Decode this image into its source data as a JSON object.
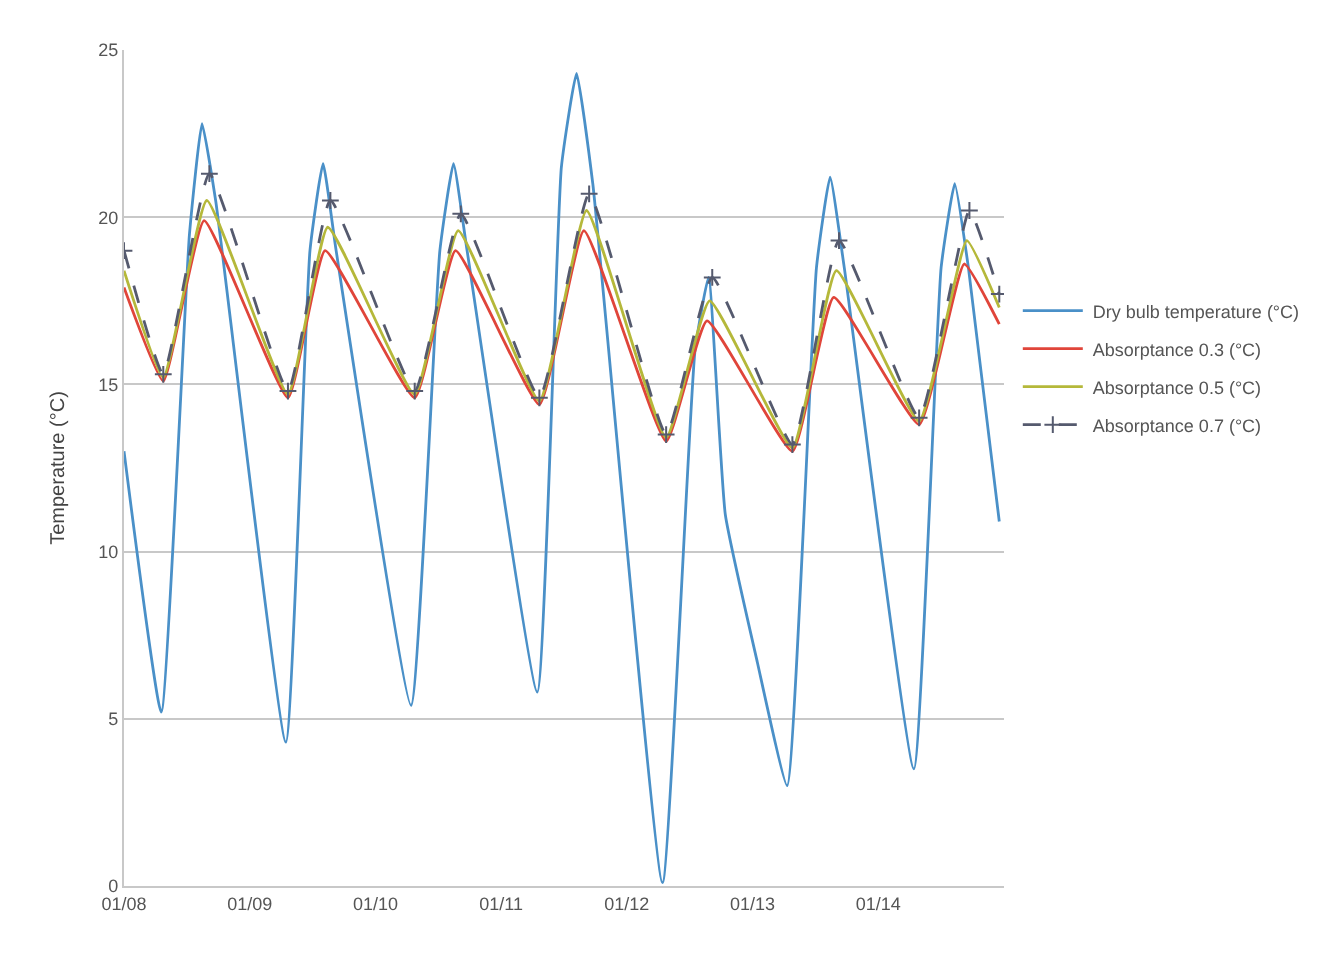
{
  "chart_data": {
    "type": "line",
    "ylabel": "Temperature (°C)",
    "x": [
      "--01-08T00:00",
      "--01-08T07:30",
      "--01-08T15:18",
      "--01-09T07:18",
      "--01-09T14:24",
      "--01-10T07:30",
      "--01-10T15:18",
      "--01-11T07:18",
      "--01-11T15:48",
      "--01-12T07:30",
      "--01-12T15:18",
      "--01-13T07:36",
      "--01-13T15:30",
      "--01-14T07:48",
      "--01-14T16:24",
      "--01-14T23:06"
    ],
    "series": [
      {
        "name": "Dry bulb temperature (°C)",
        "color": "#4a90c8",
        "x": [
          "--01-08T00:00",
          "--01-08T07:06",
          "--01-08T12:30",
          "--01-08T14:54",
          "--01-08T17:30",
          "--01-09T06:54",
          "--01-09T11:30",
          "--01-09T14:00",
          "--01-09T16:30",
          "--01-10T06:48",
          "--01-10T12:18",
          "--01-10T14:54",
          "--01-10T17:30",
          "--01-11T06:54",
          "--01-11T11:30",
          "--01-11T14:24",
          "--01-11T17:30",
          "--01-12T06:48",
          "--01-12T13:00",
          "--01-12T15:36",
          "--01-12T18:48",
          "--01-13T00:54",
          "--01-13T06:36",
          "--01-13T12:12",
          "--01-13T14:48",
          "--01-13T17:30",
          "--01-14T06:48",
          "--01-14T12:00",
          "--01-14T14:36",
          "--01-14T17:12",
          "--01-14T23:06"
        ],
        "values": [
          13,
          5.2,
          19.5,
          22.8,
          20.5,
          4.3,
          19,
          21.6,
          19,
          5.4,
          19,
          21.6,
          19,
          5.8,
          21.5,
          24.3,
          21,
          0.1,
          16,
          18.2,
          11.1,
          6.7,
          3,
          18.5,
          21.2,
          18.5,
          3.5,
          18.5,
          21,
          18.5,
          10.9
        ]
      },
      {
        "name": "Absorptance 0.3 (°C)",
        "color": "#e0453a",
        "values": [
          17.9,
          15.1,
          19.9,
          14.6,
          19,
          14.6,
          19,
          14.4,
          19.6,
          13.3,
          16.9,
          13,
          17.6,
          13.8,
          18.6,
          16.8
        ]
      },
      {
        "name": "Absorptance 0.5 (°C)",
        "color": "#b5b83a",
        "x": [
          "--01-08T00:00",
          "--01-08T07:30",
          "--01-08T15:48",
          "--01-09T07:18",
          "--01-09T14:54",
          "--01-10T07:30",
          "--01-10T15:48",
          "--01-11T07:18",
          "--01-11T16:18",
          "--01-12T07:30",
          "--01-12T15:48",
          "--01-13T07:36",
          "--01-13T16:00",
          "--01-14T07:48",
          "--01-14T16:54",
          "--01-14T23:06"
        ],
        "values": [
          18.4,
          15.2,
          20.5,
          14.7,
          19.7,
          14.7,
          19.6,
          14.5,
          20.2,
          13.4,
          17.5,
          13.1,
          18.4,
          13.9,
          19.3,
          17.3
        ]
      },
      {
        "name": "Absorptance 0.7 (°C)",
        "color": "#555a6e",
        "line_style": "dashed",
        "marker": "cross",
        "x": [
          "--01-08T00:00",
          "--01-08T07:30",
          "--01-08T16:18",
          "--01-09T07:18",
          "--01-09T15:24",
          "--01-10T07:30",
          "--01-10T16:18",
          "--01-11T07:18",
          "--01-11T16:48",
          "--01-12T07:30",
          "--01-12T16:18",
          "--01-13T07:36",
          "--01-13T16:30",
          "--01-14T07:48",
          "--01-14T17:24",
          "--01-14T23:06"
        ],
        "values": [
          19,
          15.3,
          21.3,
          14.8,
          20.5,
          14.8,
          20.1,
          14.6,
          20.7,
          13.5,
          18.2,
          13.2,
          19.3,
          14,
          20.2,
          17.7
        ]
      }
    ],
    "xlim": [
      "--01-08",
      "--01-15"
    ],
    "xticks": [
      {
        "value": "--01-08",
        "label": "01/08"
      },
      {
        "value": "--01-09",
        "label": "01/09"
      },
      {
        "value": "--01-10",
        "label": "01/10"
      },
      {
        "value": "--01-11",
        "label": "01/11"
      },
      {
        "value": "--01-12",
        "label": "01/12"
      },
      {
        "value": "--01-13",
        "label": "01/13"
      },
      {
        "value": "--01-14",
        "label": "01/14"
      }
    ],
    "ylim": [
      0,
      25
    ],
    "yticks": [
      0,
      5,
      10,
      15,
      20,
      25
    ],
    "grid": "y",
    "legend": "right",
    "line_style": "solid",
    "marker": "none"
  }
}
